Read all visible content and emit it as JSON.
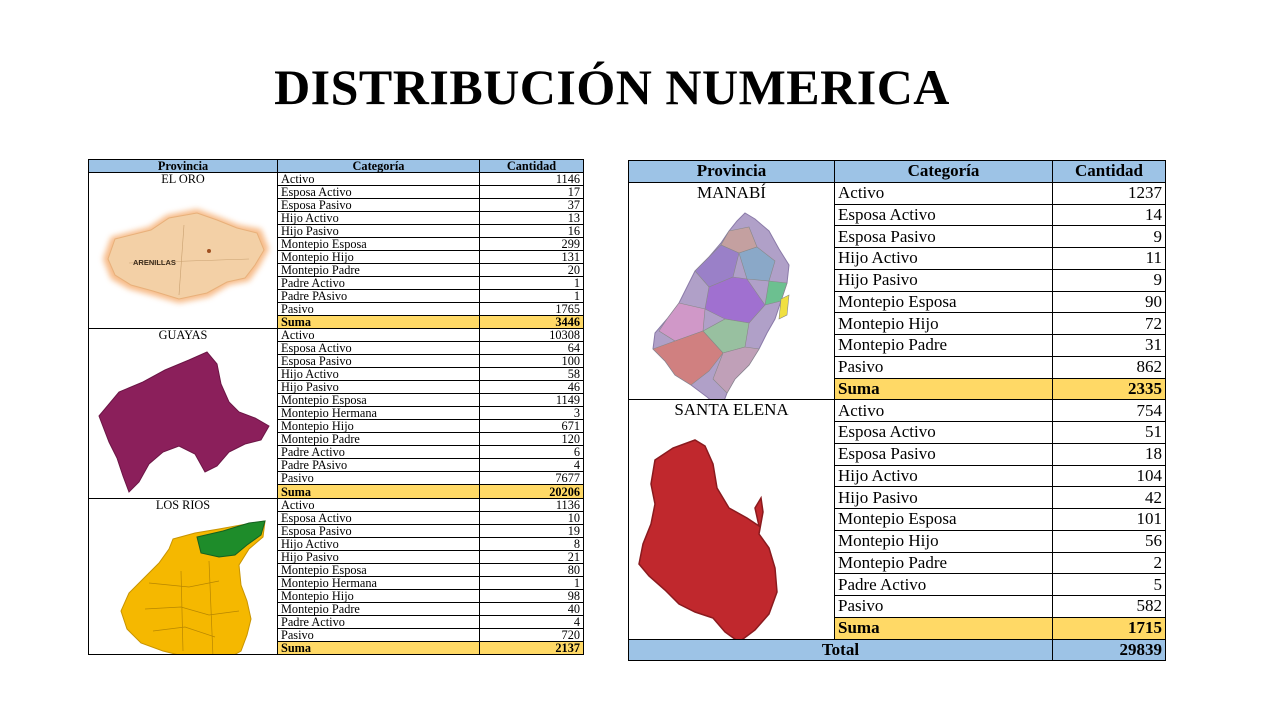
{
  "title": "DISTRIBUCIÓN NUMERICA",
  "headers": {
    "provincia": "Provincia",
    "categoria": "Categoría",
    "cantidad": "Cantidad"
  },
  "left_table": [
    {
      "name": "EL ORO",
      "map_label": "ARENILLAS",
      "map_color": "#f3d0a6",
      "rows": [
        {
          "cat": "Activo",
          "val": "1146"
        },
        {
          "cat": "Esposa Activo",
          "val": "17"
        },
        {
          "cat": "Esposa Pasivo",
          "val": "37"
        },
        {
          "cat": "Hijo Activo",
          "val": "13"
        },
        {
          "cat": "Hijo Pasivo",
          "val": "16"
        },
        {
          "cat": "Montepio Esposa",
          "val": "299"
        },
        {
          "cat": "Montepio Hijo",
          "val": "131"
        },
        {
          "cat": "Montepio Padre",
          "val": "20"
        },
        {
          "cat": "Padre Activo",
          "val": "1"
        },
        {
          "cat": "Padre PAsivo",
          "val": "1"
        },
        {
          "cat": "Pasivo",
          "val": "1765"
        }
      ],
      "suma_label": "Suma",
      "suma": "3446"
    },
    {
      "name": "GUAYAS",
      "map_color": "#8b1f5b",
      "rows": [
        {
          "cat": "Activo",
          "val": "10308"
        },
        {
          "cat": "Esposa Activo",
          "val": "64"
        },
        {
          "cat": "Esposa Pasivo",
          "val": "100"
        },
        {
          "cat": "Hijo Activo",
          "val": "58"
        },
        {
          "cat": "Hijo Pasivo",
          "val": "46"
        },
        {
          "cat": "Montepio Esposa",
          "val": "1149"
        },
        {
          "cat": "Montepio Hermana",
          "val": "3"
        },
        {
          "cat": "Montepio Hijo",
          "val": "671"
        },
        {
          "cat": "Montepio Padre",
          "val": "120"
        },
        {
          "cat": "Padre Activo",
          "val": "6"
        },
        {
          "cat": "Padre PAsivo",
          "val": "4"
        },
        {
          "cat": "Pasivo",
          "val": "7677"
        }
      ],
      "suma_label": "Suma",
      "suma": "20206"
    },
    {
      "name": "LOS RIOS",
      "map_color": "#f5b800",
      "map_highlight": "#1e8c2a",
      "rows": [
        {
          "cat": "Activo",
          "val": "1136"
        },
        {
          "cat": "Esposa Activo",
          "val": "10"
        },
        {
          "cat": "Esposa Pasivo",
          "val": "19"
        },
        {
          "cat": "Hijo Activo",
          "val": "8"
        },
        {
          "cat": "Hijo Pasivo",
          "val": "21"
        },
        {
          "cat": "Montepio Esposa",
          "val": "80"
        },
        {
          "cat": "Montepio Hermana",
          "val": "1"
        },
        {
          "cat": "Montepio Hijo",
          "val": "98"
        },
        {
          "cat": "Montepio Padre",
          "val": "40"
        },
        {
          "cat": "Padre Activo",
          "val": "4"
        },
        {
          "cat": "Pasivo",
          "val": "720"
        }
      ],
      "suma_label": "Suma",
      "suma": "2137"
    }
  ],
  "right_table": [
    {
      "name": "MANABÍ",
      "rows": [
        {
          "cat": "Activo",
          "val": "1237"
        },
        {
          "cat": "Esposa Activo",
          "val": "14"
        },
        {
          "cat": "Esposa Pasivo",
          "val": "9"
        },
        {
          "cat": "Hijo Activo",
          "val": "11"
        },
        {
          "cat": "Hijo Pasivo",
          "val": "9"
        },
        {
          "cat": "Montepio Esposa",
          "val": "90"
        },
        {
          "cat": "Montepio Hijo",
          "val": "72"
        },
        {
          "cat": "Montepio Padre",
          "val": "31"
        },
        {
          "cat": "Pasivo",
          "val": "862"
        }
      ],
      "suma_label": "Suma",
      "suma": "2335"
    },
    {
      "name": "SANTA ELENA",
      "map_color": "#c0282d",
      "rows": [
        {
          "cat": "Activo",
          "val": "754"
        },
        {
          "cat": "Esposa Activo",
          "val": "51"
        },
        {
          "cat": "Esposa Pasivo",
          "val": "18"
        },
        {
          "cat": "Hijo Activo",
          "val": "104"
        },
        {
          "cat": "Hijo Pasivo",
          "val": "42"
        },
        {
          "cat": "Montepio Esposa",
          "val": "101"
        },
        {
          "cat": "Montepio Hijo",
          "val": "56"
        },
        {
          "cat": "Montepio Padre",
          "val": "2"
        },
        {
          "cat": "Padre Activo",
          "val": "5"
        },
        {
          "cat": "Pasivo",
          "val": "582"
        }
      ],
      "suma_label": "Suma",
      "suma": "1715"
    }
  ],
  "total": {
    "label": "Total",
    "value": "29839"
  }
}
